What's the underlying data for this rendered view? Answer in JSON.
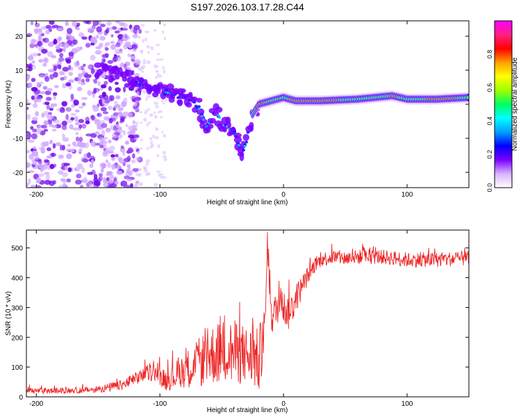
{
  "title": "S197.2026.103.17.28.C44",
  "chart_data": [
    {
      "type": "heatmap",
      "title": "S197.2026.103.17.28.C44",
      "xlabel": "Height of straight line (km)",
      "ylabel": "Frequency (Hz)",
      "xlim": [
        -208,
        150
      ],
      "ylim": [
        -24.5,
        24.5
      ],
      "xticks": [
        -200,
        -100,
        0,
        100
      ],
      "yticks": [
        -20,
        -10,
        0,
        10,
        20
      ],
      "colorbar": {
        "label": "Normalized spectral amplitude",
        "range": [
          0,
          1
        ],
        "ticks": [
          0.0,
          0.2,
          0.4,
          0.6,
          0.8
        ],
        "colors": [
          "#ffffff",
          "#d9b3ff",
          "#7a00ff",
          "#0000ff",
          "#00a0ff",
          "#00ffff",
          "#00ff60",
          "#a0ff00",
          "#ffff00",
          "#ffa000",
          "#ff0000",
          "#ff2080",
          "#ff00ff"
        ]
      },
      "ridge": [
        {
          "x": -145,
          "y": 10
        },
        {
          "x": -130,
          "y": 8
        },
        {
          "x": -115,
          "y": 6
        },
        {
          "x": -100,
          "y": 4
        },
        {
          "x": -90,
          "y": 3
        },
        {
          "x": -80,
          "y": 2
        },
        {
          "x": -70,
          "y": 0
        },
        {
          "x": -62,
          "y": -7
        },
        {
          "x": -55,
          "y": -2
        },
        {
          "x": -48,
          "y": -6
        },
        {
          "x": -40,
          "y": -8
        },
        {
          "x": -33,
          "y": -15
        },
        {
          "x": -25,
          "y": -3
        },
        {
          "x": -20,
          "y": 0
        },
        {
          "x": -10,
          "y": 1
        },
        {
          "x": 0,
          "y": 2
        },
        {
          "x": 10,
          "y": 1
        },
        {
          "x": 30,
          "y": 1
        },
        {
          "x": 60,
          "y": 1.5
        },
        {
          "x": 88,
          "y": 2.5
        },
        {
          "x": 100,
          "y": 1.5
        },
        {
          "x": 125,
          "y": 1.5
        },
        {
          "x": 150,
          "y": 2
        }
      ]
    },
    {
      "type": "line",
      "title": "",
      "xlabel": "Height of straight line (km)",
      "ylabel": "SNR (10 * v/v)",
      "xlim": [
        -208,
        150
      ],
      "ylim": [
        0,
        560
      ],
      "xticks": [
        -200,
        -100,
        0,
        100
      ],
      "yticks": [
        0,
        100,
        200,
        300,
        400,
        500
      ],
      "color": "#ee2222",
      "series": [
        {
          "name": "SNR",
          "x": [
            -208,
            -180,
            -150,
            -130,
            -115,
            -105,
            -95,
            -80,
            -70,
            -60,
            -50,
            -40,
            -30,
            -20,
            -15,
            -13,
            -10,
            -5,
            -2,
            0,
            5,
            10,
            15,
            20,
            25,
            30,
            40,
            50,
            60,
            80,
            100,
            120,
            150
          ],
          "mean": [
            20,
            20,
            25,
            40,
            70,
            85,
            55,
            90,
            110,
            140,
            150,
            150,
            140,
            120,
            200,
            530,
            260,
            300,
            350,
            300,
            280,
            330,
            370,
            410,
            440,
            460,
            470,
            465,
            470,
            470,
            460,
            460,
            465
          ],
          "noise": [
            10,
            10,
            12,
            18,
            25,
            30,
            35,
            60,
            80,
            100,
            110,
            110,
            100,
            110,
            120,
            30,
            60,
            60,
            60,
            60,
            60,
            50,
            40,
            30,
            25,
            25,
            25,
            25,
            25,
            25,
            25,
            25,
            25
          ]
        }
      ]
    }
  ]
}
